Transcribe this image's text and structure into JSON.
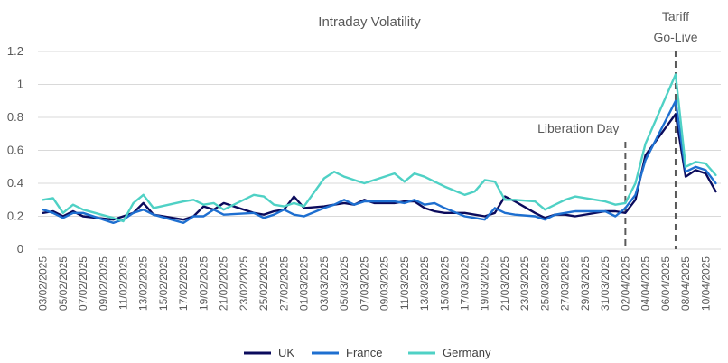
{
  "chart_data": {
    "type": "line",
    "title": "Intraday Volatility",
    "xlabel": "",
    "ylabel": "",
    "ylim": [
      0,
      1.2
    ],
    "yticks": [
      "0",
      "0.2",
      "0.4",
      "0.6",
      "0.8",
      "1",
      "1.2"
    ],
    "grid": true,
    "legend_position": "bottom",
    "x": [
      "03/02/2025",
      "04/02/2025",
      "05/02/2025",
      "06/02/2025",
      "07/02/2025",
      "08/02/2025",
      "09/02/2025",
      "10/02/2025",
      "11/02/2025",
      "12/02/2025",
      "13/02/2025",
      "14/02/2025",
      "15/02/2025",
      "16/02/2025",
      "17/02/2025",
      "18/02/2025",
      "19/02/2025",
      "20/02/2025",
      "21/02/2025",
      "22/02/2025",
      "23/02/2025",
      "24/02/2025",
      "25/02/2025",
      "26/02/2025",
      "27/02/2025",
      "28/02/2025",
      "01/03/2025",
      "02/03/2025",
      "03/03/2025",
      "04/03/2025",
      "05/03/2025",
      "06/03/2025",
      "07/03/2025",
      "08/03/2025",
      "09/03/2025",
      "10/03/2025",
      "11/03/2025",
      "12/03/2025",
      "13/03/2025",
      "14/03/2025",
      "15/03/2025",
      "16/03/2025",
      "17/03/2025",
      "18/03/2025",
      "19/03/2025",
      "20/03/2025",
      "21/03/2025",
      "22/03/2025",
      "23/03/2025",
      "24/03/2025",
      "25/03/2025",
      "26/03/2025",
      "27/03/2025",
      "28/03/2025",
      "29/03/2025",
      "30/03/2025",
      "31/03/2025",
      "01/04/2025",
      "02/04/2025",
      "03/04/2025",
      "04/04/2025",
      "05/04/2025",
      "06/04/2025",
      "07/04/2025",
      "08/04/2025",
      "09/04/2025",
      "10/04/2025",
      "11/04/2025"
    ],
    "xtick_labels": [
      "03/02/2025",
      "05/02/2025",
      "07/02/2025",
      "09/02/2025",
      "11/02/2025",
      "13/02/2025",
      "15/02/2025",
      "17/02/2025",
      "19/02/2025",
      "21/02/2025",
      "23/02/2025",
      "25/02/2025",
      "27/02/2025",
      "01/03/2025",
      "03/03/2025",
      "05/03/2025",
      "07/03/2025",
      "09/03/2025",
      "11/03/2025",
      "13/03/2025",
      "15/03/2025",
      "17/03/2025",
      "19/03/2025",
      "21/03/2025",
      "23/03/2025",
      "25/03/2025",
      "27/03/2025",
      "29/03/2025",
      "31/03/2025",
      "02/04/2025",
      "04/04/2025",
      "06/04/2025",
      "08/04/2025",
      "10/04/2025"
    ],
    "series": [
      {
        "name": "UK",
        "color": "#0b0b5c",
        "points": [
          [
            "03/02/2025",
            0.22
          ],
          [
            "04/02/2025",
            0.23
          ],
          [
            "05/02/2025",
            0.2
          ],
          [
            "06/02/2025",
            0.23
          ],
          [
            "07/02/2025",
            0.2
          ],
          [
            "10/02/2025",
            0.18
          ],
          [
            "11/02/2025",
            0.2
          ],
          [
            "12/02/2025",
            0.22
          ],
          [
            "13/02/2025",
            0.28
          ],
          [
            "14/02/2025",
            0.21
          ],
          [
            "17/02/2025",
            0.18
          ],
          [
            "18/02/2025",
            0.2
          ],
          [
            "19/02/2025",
            0.26
          ],
          [
            "20/02/2025",
            0.24
          ],
          [
            "21/02/2025",
            0.28
          ],
          [
            "24/02/2025",
            0.22
          ],
          [
            "25/02/2025",
            0.21
          ],
          [
            "26/02/2025",
            0.23
          ],
          [
            "27/02/2025",
            0.24
          ],
          [
            "28/02/2025",
            0.32
          ],
          [
            "01/03/2025",
            0.25
          ],
          [
            "03/03/2025",
            0.26
          ],
          [
            "04/03/2025",
            0.27
          ],
          [
            "05/03/2025",
            0.28
          ],
          [
            "06/03/2025",
            0.27
          ],
          [
            "07/03/2025",
            0.3
          ],
          [
            "08/03/2025",
            0.28
          ],
          [
            "10/03/2025",
            0.28
          ],
          [
            "11/03/2025",
            0.29
          ],
          [
            "12/03/2025",
            0.29
          ],
          [
            "13/03/2025",
            0.25
          ],
          [
            "14/03/2025",
            0.23
          ],
          [
            "15/03/2025",
            0.22
          ],
          [
            "17/03/2025",
            0.22
          ],
          [
            "18/03/2025",
            0.21
          ],
          [
            "19/03/2025",
            0.2
          ],
          [
            "20/03/2025",
            0.22
          ],
          [
            "21/03/2025",
            0.32
          ],
          [
            "22/03/2025",
            0.29
          ],
          [
            "24/03/2025",
            0.22
          ],
          [
            "25/03/2025",
            0.19
          ],
          [
            "26/03/2025",
            0.21
          ],
          [
            "27/03/2025",
            0.21
          ],
          [
            "28/03/2025",
            0.2
          ],
          [
            "31/03/2025",
            0.23
          ],
          [
            "01/04/2025",
            0.23
          ],
          [
            "02/04/2025",
            0.22
          ],
          [
            "03/04/2025",
            0.3
          ],
          [
            "04/04/2025",
            0.57
          ],
          [
            "07/04/2025",
            0.82
          ],
          [
            "08/04/2025",
            0.44
          ],
          [
            "09/04/2025",
            0.48
          ],
          [
            "10/04/2025",
            0.46
          ],
          [
            "11/04/2025",
            0.35
          ]
        ]
      },
      {
        "name": "France",
        "color": "#1e6fd0",
        "points": [
          [
            "03/02/2025",
            0.24
          ],
          [
            "04/02/2025",
            0.22
          ],
          [
            "05/02/2025",
            0.19
          ],
          [
            "06/02/2025",
            0.22
          ],
          [
            "07/02/2025",
            0.22
          ],
          [
            "10/02/2025",
            0.16
          ],
          [
            "11/02/2025",
            0.18
          ],
          [
            "12/02/2025",
            0.22
          ],
          [
            "13/02/2025",
            0.24
          ],
          [
            "14/02/2025",
            0.21
          ],
          [
            "17/02/2025",
            0.16
          ],
          [
            "18/02/2025",
            0.2
          ],
          [
            "19/02/2025",
            0.2
          ],
          [
            "20/02/2025",
            0.24
          ],
          [
            "21/02/2025",
            0.21
          ],
          [
            "24/02/2025",
            0.22
          ],
          [
            "25/02/2025",
            0.19
          ],
          [
            "26/02/2025",
            0.21
          ],
          [
            "27/02/2025",
            0.24
          ],
          [
            "28/02/2025",
            0.21
          ],
          [
            "01/03/2025",
            0.2
          ],
          [
            "03/03/2025",
            0.25
          ],
          [
            "04/03/2025",
            0.27
          ],
          [
            "05/03/2025",
            0.3
          ],
          [
            "06/03/2025",
            0.27
          ],
          [
            "07/03/2025",
            0.29
          ],
          [
            "08/03/2025",
            0.29
          ],
          [
            "10/03/2025",
            0.29
          ],
          [
            "11/03/2025",
            0.28
          ],
          [
            "12/03/2025",
            0.3
          ],
          [
            "13/03/2025",
            0.27
          ],
          [
            "14/03/2025",
            0.28
          ],
          [
            "15/03/2025",
            0.25
          ],
          [
            "17/03/2025",
            0.2
          ],
          [
            "18/03/2025",
            0.19
          ],
          [
            "19/03/2025",
            0.18
          ],
          [
            "20/03/2025",
            0.25
          ],
          [
            "21/03/2025",
            0.22
          ],
          [
            "22/03/2025",
            0.21
          ],
          [
            "24/03/2025",
            0.2
          ],
          [
            "25/03/2025",
            0.18
          ],
          [
            "26/03/2025",
            0.21
          ],
          [
            "27/03/2025",
            0.22
          ],
          [
            "28/03/2025",
            0.23
          ],
          [
            "31/03/2025",
            0.23
          ],
          [
            "01/04/2025",
            0.2
          ],
          [
            "02/04/2025",
            0.25
          ],
          [
            "03/04/2025",
            0.33
          ],
          [
            "04/04/2025",
            0.54
          ],
          [
            "07/04/2025",
            0.9
          ],
          [
            "08/04/2025",
            0.47
          ],
          [
            "09/04/2025",
            0.5
          ],
          [
            "10/04/2025",
            0.48
          ],
          [
            "11/04/2025",
            0.4
          ]
        ]
      },
      {
        "name": "Germany",
        "color": "#4fd1c5",
        "points": [
          [
            "03/02/2025",
            0.3
          ],
          [
            "04/02/2025",
            0.31
          ],
          [
            "05/02/2025",
            0.22
          ],
          [
            "06/02/2025",
            0.27
          ],
          [
            "07/02/2025",
            0.24
          ],
          [
            "10/02/2025",
            0.19
          ],
          [
            "11/02/2025",
            0.17
          ],
          [
            "12/02/2025",
            0.28
          ],
          [
            "13/02/2025",
            0.33
          ],
          [
            "14/02/2025",
            0.25
          ],
          [
            "17/02/2025",
            0.29
          ],
          [
            "18/02/2025",
            0.3
          ],
          [
            "19/02/2025",
            0.27
          ],
          [
            "20/02/2025",
            0.28
          ],
          [
            "21/02/2025",
            0.24
          ],
          [
            "24/02/2025",
            0.33
          ],
          [
            "25/02/2025",
            0.32
          ],
          [
            "26/02/2025",
            0.27
          ],
          [
            "27/02/2025",
            0.26
          ],
          [
            "28/02/2025",
            0.28
          ],
          [
            "01/03/2025",
            0.26
          ],
          [
            "03/03/2025",
            0.43
          ],
          [
            "04/03/2025",
            0.47
          ],
          [
            "05/03/2025",
            0.44
          ],
          [
            "06/03/2025",
            0.42
          ],
          [
            "07/03/2025",
            0.4
          ],
          [
            "08/03/2025",
            0.42
          ],
          [
            "10/03/2025",
            0.46
          ],
          [
            "11/03/2025",
            0.41
          ],
          [
            "12/03/2025",
            0.46
          ],
          [
            "13/03/2025",
            0.44
          ],
          [
            "14/03/2025",
            0.41
          ],
          [
            "15/03/2025",
            0.38
          ],
          [
            "17/03/2025",
            0.33
          ],
          [
            "18/03/2025",
            0.35
          ],
          [
            "19/03/2025",
            0.42
          ],
          [
            "20/03/2025",
            0.41
          ],
          [
            "21/03/2025",
            0.3
          ],
          [
            "22/03/2025",
            0.3
          ],
          [
            "24/03/2025",
            0.29
          ],
          [
            "25/03/2025",
            0.24
          ],
          [
            "26/03/2025",
            0.27
          ],
          [
            "27/03/2025",
            0.3
          ],
          [
            "28/03/2025",
            0.32
          ],
          [
            "31/03/2025",
            0.29
          ],
          [
            "01/04/2025",
            0.27
          ],
          [
            "02/04/2025",
            0.28
          ],
          [
            "03/04/2025",
            0.4
          ],
          [
            "04/04/2025",
            0.64
          ],
          [
            "07/04/2025",
            1.06
          ],
          [
            "08/04/2025",
            0.5
          ],
          [
            "09/04/2025",
            0.53
          ],
          [
            "10/04/2025",
            0.52
          ],
          [
            "11/04/2025",
            0.45
          ]
        ]
      }
    ],
    "annotations": [
      {
        "lines": [
          "Liberation Day"
        ],
        "x": "02/04/2025",
        "line_style": "dashed",
        "color": "#595959"
      },
      {
        "lines": [
          "Tariff",
          "Go-Live"
        ],
        "x": "07/04/2025",
        "line_style": "dashed",
        "color": "#595959"
      }
    ]
  }
}
